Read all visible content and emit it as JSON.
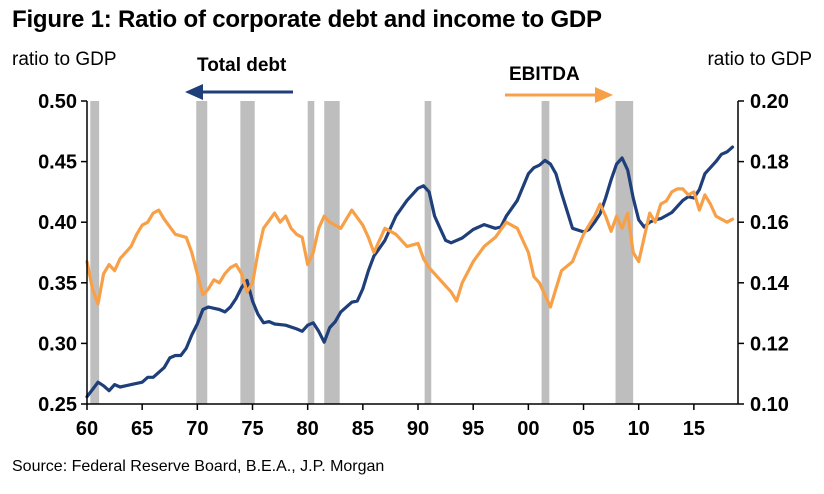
{
  "title": "Figure 1: Ratio of corporate debt and income to GDP",
  "source": "Source: Federal Reserve Board, B.E.A., J.P. Morgan",
  "colors": {
    "debt": "#1F3F7A",
    "ebitda": "#F7A048",
    "recession": "#BEBEBE",
    "axis": "#000000"
  },
  "chart_data": {
    "type": "line",
    "xlim": [
      1960,
      2019
    ],
    "x_ticks": [
      1960,
      1965,
      1970,
      1975,
      1980,
      1985,
      1990,
      1995,
      2000,
      2005,
      2010,
      2015
    ],
    "x_tick_labels": [
      "60",
      "65",
      "70",
      "75",
      "80",
      "85",
      "90",
      "95",
      "00",
      "05",
      "10",
      "15"
    ],
    "left_axis": {
      "label": "ratio to GDP",
      "range": [
        0.25,
        0.5
      ],
      "ticks": [
        "0.25",
        "0.30",
        "0.35",
        "0.40",
        "0.45",
        "0.50"
      ]
    },
    "right_axis": {
      "label": "ratio to GDP",
      "range": [
        0.1,
        0.2
      ],
      "ticks": [
        "0.10",
        "0.12",
        "0.14",
        "0.16",
        "0.18",
        "0.20"
      ]
    },
    "recessions": [
      [
        1960.3,
        1961.1
      ],
      [
        1969.9,
        1970.9
      ],
      [
        1973.9,
        1975.2
      ],
      [
        1980.0,
        1980.6
      ],
      [
        1981.5,
        1982.9
      ],
      [
        1990.6,
        1991.2
      ],
      [
        2001.2,
        2001.9
      ],
      [
        2007.9,
        2009.5
      ]
    ],
    "legend": [
      {
        "name": "Total debt",
        "axis": "left",
        "arrow": "left"
      },
      {
        "name": "EBITDA",
        "axis": "right",
        "arrow": "right"
      }
    ],
    "series": [
      {
        "name": "Total debt",
        "axis": "left",
        "x": [
          1960.0,
          1960.5,
          1961.0,
          1961.5,
          1962.0,
          1962.5,
          1963.0,
          1964.0,
          1965.0,
          1965.5,
          1966.0,
          1967.0,
          1967.5,
          1968.0,
          1968.5,
          1969.0,
          1969.5,
          1970.0,
          1970.5,
          1971.0,
          1971.5,
          1972.0,
          1972.5,
          1973.0,
          1973.5,
          1974.0,
          1974.5,
          1975.0,
          1975.5,
          1976.0,
          1976.5,
          1977.0,
          1978.0,
          1979.0,
          1979.5,
          1980.0,
          1980.5,
          1981.0,
          1981.5,
          1982.0,
          1982.5,
          1983.0,
          1984.0,
          1984.5,
          1985.0,
          1985.5,
          1986.0,
          1987.0,
          1988.0,
          1989.0,
          1990.0,
          1990.5,
          1991.0,
          1991.5,
          1992.0,
          1992.5,
          1993.0,
          1994.0,
          1995.0,
          1996.0,
          1997.0,
          1997.5,
          1998.0,
          1999.0,
          2000.0,
          2000.5,
          2001.0,
          2001.5,
          2002.0,
          2002.5,
          2003.0,
          2004.0,
          2005.0,
          2005.5,
          2006.0,
          2006.5,
          2007.0,
          2007.5,
          2008.0,
          2008.5,
          2009.0,
          2009.5,
          2010.0,
          2010.5,
          2011.0,
          2011.5,
          2012.0,
          2013.0,
          2014.0,
          2014.5,
          2015.0,
          2015.5,
          2016.0,
          2017.0,
          2017.5,
          2018.0,
          2018.5
        ],
        "values": [
          0.256,
          0.262,
          0.268,
          0.265,
          0.261,
          0.266,
          0.264,
          0.266,
          0.268,
          0.272,
          0.272,
          0.28,
          0.288,
          0.29,
          0.29,
          0.296,
          0.307,
          0.316,
          0.328,
          0.33,
          0.329,
          0.328,
          0.326,
          0.33,
          0.337,
          0.346,
          0.352,
          0.335,
          0.324,
          0.317,
          0.318,
          0.316,
          0.315,
          0.312,
          0.31,
          0.315,
          0.317,
          0.31,
          0.301,
          0.313,
          0.318,
          0.326,
          0.334,
          0.335,
          0.345,
          0.36,
          0.372,
          0.385,
          0.405,
          0.418,
          0.428,
          0.43,
          0.425,
          0.405,
          0.395,
          0.385,
          0.383,
          0.387,
          0.394,
          0.398,
          0.395,
          0.396,
          0.405,
          0.418,
          0.44,
          0.445,
          0.447,
          0.451,
          0.448,
          0.44,
          0.424,
          0.395,
          0.392,
          0.394,
          0.4,
          0.407,
          0.42,
          0.435,
          0.448,
          0.453,
          0.443,
          0.42,
          0.402,
          0.396,
          0.4,
          0.402,
          0.403,
          0.408,
          0.418,
          0.421,
          0.42,
          0.427,
          0.44,
          0.45,
          0.456,
          0.458,
          0.462
        ]
      },
      {
        "name": "EBITDA",
        "axis": "right",
        "x": [
          1960.0,
          1960.5,
          1961.0,
          1961.5,
          1962.0,
          1962.5,
          1963.0,
          1964.0,
          1964.5,
          1965.0,
          1965.5,
          1966.0,
          1966.5,
          1967.0,
          1968.0,
          1969.0,
          1969.5,
          1970.0,
          1970.5,
          1971.0,
          1971.5,
          1972.0,
          1972.5,
          1973.0,
          1973.5,
          1974.0,
          1974.5,
          1975.0,
          1975.5,
          1976.0,
          1977.0,
          1977.5,
          1978.0,
          1978.5,
          1979.0,
          1979.5,
          1980.0,
          1980.5,
          1981.0,
          1981.5,
          1982.0,
          1982.5,
          1983.0,
          1984.0,
          1985.0,
          1985.5,
          1986.0,
          1987.0,
          1988.0,
          1989.0,
          1990.0,
          1990.5,
          1991.0,
          1992.0,
          1993.0,
          1993.5,
          1994.0,
          1995.0,
          1996.0,
          1997.0,
          1998.0,
          1999.0,
          2000.0,
          2000.5,
          2001.0,
          2001.5,
          2002.0,
          2002.5,
          2003.0,
          2004.0,
          2005.0,
          2005.5,
          2006.0,
          2006.5,
          2007.0,
          2007.5,
          2008.0,
          2008.5,
          2009.0,
          2009.5,
          2010.0,
          2010.5,
          2011.0,
          2011.5,
          2012.0,
          2012.5,
          2013.0,
          2013.5,
          2014.0,
          2014.5,
          2015.0,
          2015.5,
          2016.0,
          2016.5,
          2017.0,
          2017.5,
          2018.0,
          2018.5
        ],
        "values": [
          0.147,
          0.138,
          0.133,
          0.143,
          0.146,
          0.144,
          0.148,
          0.152,
          0.156,
          0.159,
          0.16,
          0.163,
          0.164,
          0.161,
          0.156,
          0.155,
          0.15,
          0.143,
          0.136,
          0.138,
          0.141,
          0.14,
          0.143,
          0.145,
          0.146,
          0.143,
          0.137,
          0.14,
          0.15,
          0.158,
          0.163,
          0.16,
          0.162,
          0.158,
          0.156,
          0.155,
          0.146,
          0.15,
          0.158,
          0.162,
          0.16,
          0.159,
          0.158,
          0.164,
          0.159,
          0.155,
          0.15,
          0.158,
          0.156,
          0.152,
          0.153,
          0.148,
          0.145,
          0.141,
          0.137,
          0.134,
          0.14,
          0.147,
          0.152,
          0.155,
          0.16,
          0.158,
          0.15,
          0.142,
          0.14,
          0.136,
          0.132,
          0.138,
          0.144,
          0.147,
          0.156,
          0.159,
          0.162,
          0.166,
          0.162,
          0.157,
          0.162,
          0.158,
          0.163,
          0.15,
          0.147,
          0.155,
          0.163,
          0.16,
          0.166,
          0.167,
          0.17,
          0.171,
          0.171,
          0.169,
          0.17,
          0.164,
          0.169,
          0.166,
          0.162,
          0.161,
          0.16,
          0.161
        ]
      }
    ]
  }
}
